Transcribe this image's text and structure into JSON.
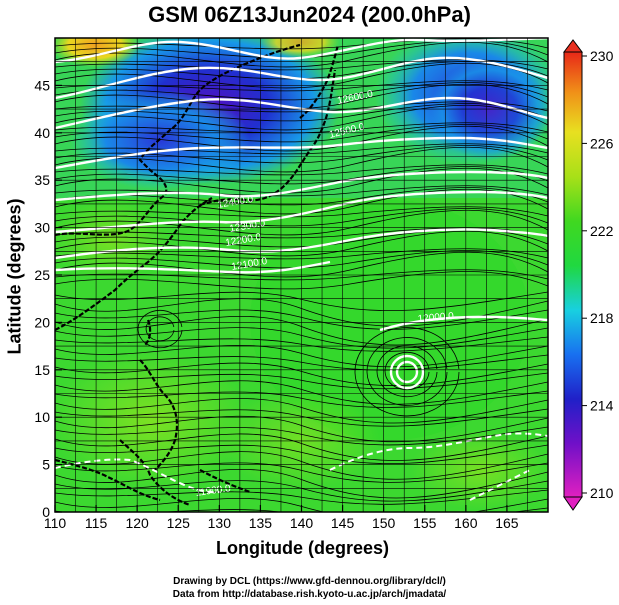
{
  "title": "GSM 06Z13Jun2024 (200.0hPa)",
  "x_axis": {
    "label": "Longitude (degrees)",
    "range": [
      110,
      170
    ],
    "ticks": [
      "110",
      "115",
      "120",
      "125",
      "130",
      "135",
      "140",
      "145",
      "150",
      "155",
      "160",
      "165"
    ]
  },
  "y_axis": {
    "label": "Latitude  (degrees)",
    "range": [
      0,
      50
    ],
    "ticks": [
      "0",
      "5",
      "10",
      "15",
      "20",
      "25",
      "30",
      "35",
      "40",
      "45"
    ]
  },
  "colorbar": {
    "ticks": [
      "210",
      "214",
      "218",
      "222",
      "226",
      "230"
    ],
    "colors": [
      "#d81ec8",
      "#3a10c8",
      "#1c6cf0",
      "#18d8d8",
      "#28d828",
      "#9ae018",
      "#e8e818",
      "#f0a018",
      "#e83020"
    ]
  },
  "contour_labels": [
    "12600.0",
    "12500.0",
    "12400.0",
    "12300.0",
    "12200.0",
    "12100.0",
    "12000.0",
    "11900.0"
  ],
  "credits": {
    "line1": "Drawing by DCL (https://www.gfd-dennou.org/library/dcl/)",
    "line2": "Data from http://database.rish.kyoto-u.ac.jp/arch/jmadata/"
  }
}
